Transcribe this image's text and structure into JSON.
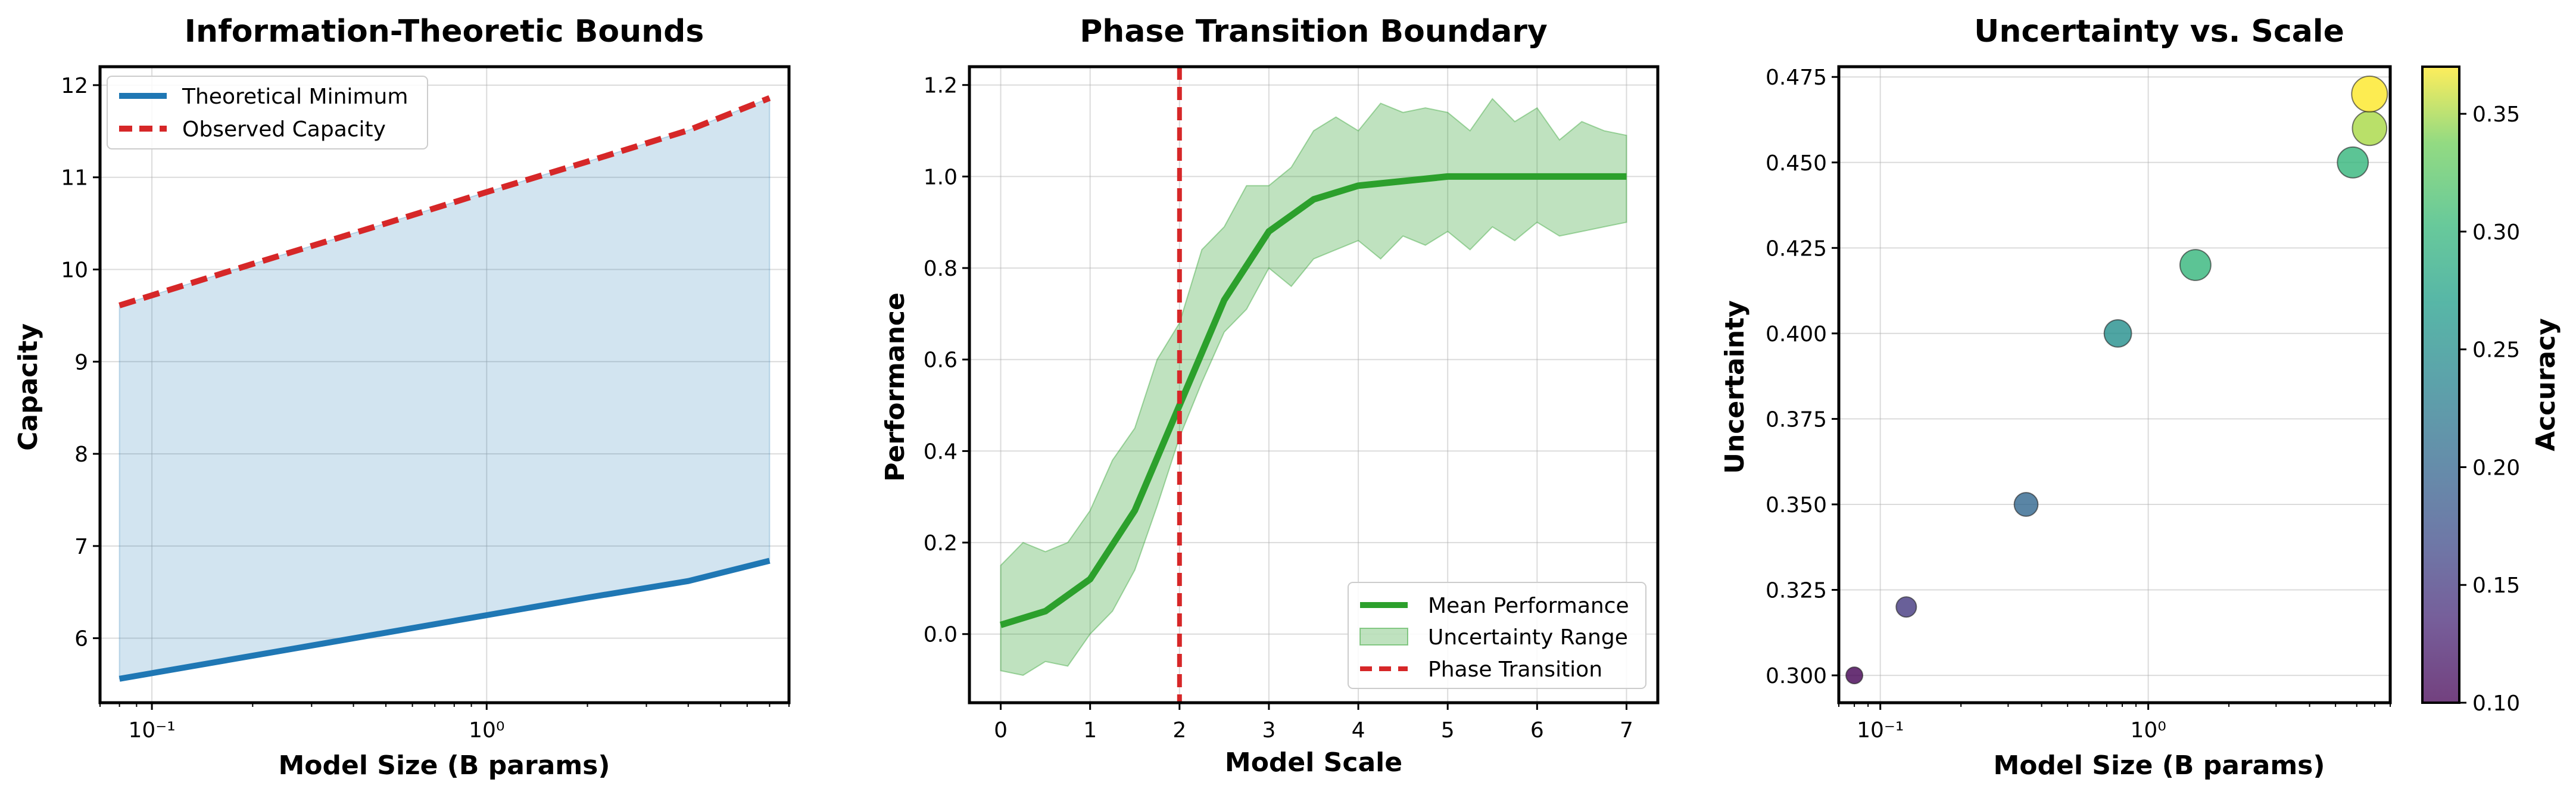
{
  "chart_data": [
    {
      "type": "area",
      "title": "Information-Theoretic Bounds",
      "xlabel": "Model Size (B params)",
      "ylabel": "Capacity",
      "xscale": "log",
      "xlim": [
        0.07,
        8.0
      ],
      "ylim": [
        5.3,
        12.2
      ],
      "x_ticks": [
        0.1,
        1
      ],
      "x_tick_labels": [
        "10⁻¹",
        "10⁰"
      ],
      "y_ticks": [
        6,
        7,
        8,
        9,
        10,
        11,
        12
      ],
      "grid": true,
      "legend": "top-left",
      "series": [
        {
          "name": "Theoretical Minimum",
          "style": "solid",
          "color": "#1f77b4",
          "x": [
            0.08,
            0.2,
            0.5,
            1,
            2,
            4,
            7
          ],
          "y": [
            5.56,
            5.81,
            6.06,
            6.25,
            6.44,
            6.62,
            6.84
          ]
        },
        {
          "name": "Observed Capacity",
          "style": "dashed",
          "color": "#d62728",
          "x": [
            0.08,
            0.2,
            0.5,
            1,
            2,
            4,
            7
          ],
          "y": [
            9.61,
            10.06,
            10.5,
            10.84,
            11.17,
            11.51,
            11.86
          ]
        }
      ],
      "fill_between": {
        "lower": "Theoretical Minimum",
        "upper": "Observed Capacity",
        "color": "#1f77b4",
        "alpha": 0.2
      }
    },
    {
      "type": "line",
      "title": "Phase Transition Boundary",
      "xlabel": "Model Scale",
      "ylabel": "Performance",
      "xlim": [
        -0.35,
        7.35
      ],
      "ylim": [
        -0.15,
        1.24
      ],
      "x_ticks": [
        0,
        1,
        2,
        3,
        4,
        5,
        6,
        7
      ],
      "y_ticks": [
        0.0,
        0.2,
        0.4,
        0.6,
        0.8,
        1.0,
        1.2
      ],
      "y_tick_labels": [
        "0.0",
        "0.2",
        "0.4",
        "0.6",
        "0.8",
        "1.0",
        "1.2"
      ],
      "grid": true,
      "legend": "bottom-right",
      "series": [
        {
          "name": "Mean Performance",
          "style": "solid",
          "color": "#2ca02c",
          "x": [
            0,
            0.5,
            1,
            1.5,
            2,
            2.5,
            3,
            3.5,
            4,
            4.5,
            5,
            5.5,
            6,
            6.5,
            7
          ],
          "y": [
            0.02,
            0.05,
            0.12,
            0.27,
            0.5,
            0.73,
            0.88,
            0.95,
            0.98,
            0.99,
            1.0,
            1.0,
            1.0,
            1.0,
            1.0
          ]
        }
      ],
      "band": {
        "name": "Uncertainty Range",
        "color": "#2ca02c",
        "alpha": 0.3,
        "x": [
          0,
          0.25,
          0.5,
          0.75,
          1,
          1.25,
          1.5,
          1.75,
          2,
          2.25,
          2.5,
          2.75,
          3,
          3.25,
          3.5,
          3.75,
          4,
          4.25,
          4.5,
          4.75,
          5,
          5.25,
          5.5,
          5.75,
          6,
          6.25,
          6.5,
          6.75,
          7
        ],
        "lower": [
          -0.08,
          -0.09,
          -0.06,
          -0.07,
          0.0,
          0.05,
          0.14,
          0.28,
          0.43,
          0.55,
          0.66,
          0.71,
          0.8,
          0.76,
          0.82,
          0.84,
          0.86,
          0.82,
          0.87,
          0.85,
          0.88,
          0.84,
          0.89,
          0.86,
          0.9,
          0.87,
          0.88,
          0.89,
          0.9
        ],
        "upper": [
          0.15,
          0.2,
          0.18,
          0.2,
          0.27,
          0.38,
          0.45,
          0.6,
          0.68,
          0.84,
          0.89,
          0.98,
          0.98,
          1.02,
          1.1,
          1.13,
          1.1,
          1.16,
          1.14,
          1.15,
          1.14,
          1.1,
          1.17,
          1.12,
          1.15,
          1.08,
          1.12,
          1.1,
          1.09
        ]
      },
      "vline": {
        "name": "Phase Transition",
        "x": 2,
        "style": "dashed",
        "color": "#d62728"
      }
    },
    {
      "type": "scatter",
      "title": "Uncertainty vs. Scale",
      "xlabel": "Model Size (B params)",
      "ylabel": "Uncertainty",
      "xscale": "log",
      "xlim": [
        0.07,
        8.0
      ],
      "ylim": [
        0.292,
        0.478
      ],
      "x_ticks": [
        0.1,
        1
      ],
      "x_tick_labels": [
        "10⁻¹",
        "10⁰"
      ],
      "y_ticks": [
        0.3,
        0.325,
        0.35,
        0.375,
        0.4,
        0.425,
        0.45,
        0.475
      ],
      "y_tick_labels": [
        "0.300",
        "0.325",
        "0.350",
        "0.375",
        "0.400",
        "0.425",
        "0.450",
        "0.475"
      ],
      "grid": true,
      "points": [
        {
          "x": 0.08,
          "y": 0.3,
          "accuracy": 0.1
        },
        {
          "x": 0.125,
          "y": 0.32,
          "accuracy": 0.15
        },
        {
          "x": 0.35,
          "y": 0.35,
          "accuracy": 0.2
        },
        {
          "x": 0.77,
          "y": 0.4,
          "accuracy": 0.25
        },
        {
          "x": 1.5,
          "y": 0.42,
          "accuracy": 0.3
        },
        {
          "x": 5.8,
          "y": 0.45,
          "accuracy": 0.3
        },
        {
          "x": 6.7,
          "y": 0.46,
          "accuracy": 0.35
        },
        {
          "x": 6.7,
          "y": 0.47,
          "accuracy": 0.37
        }
      ],
      "colorbar": {
        "label": "Accuracy",
        "colormap": "viridis",
        "alpha": 0.7,
        "range": [
          0.1,
          0.37
        ],
        "ticks": [
          0.1,
          0.15,
          0.2,
          0.25,
          0.3,
          0.35
        ],
        "tick_labels": [
          "0.10",
          "0.15",
          "0.20",
          "0.25",
          "0.30",
          "0.35"
        ]
      }
    }
  ]
}
